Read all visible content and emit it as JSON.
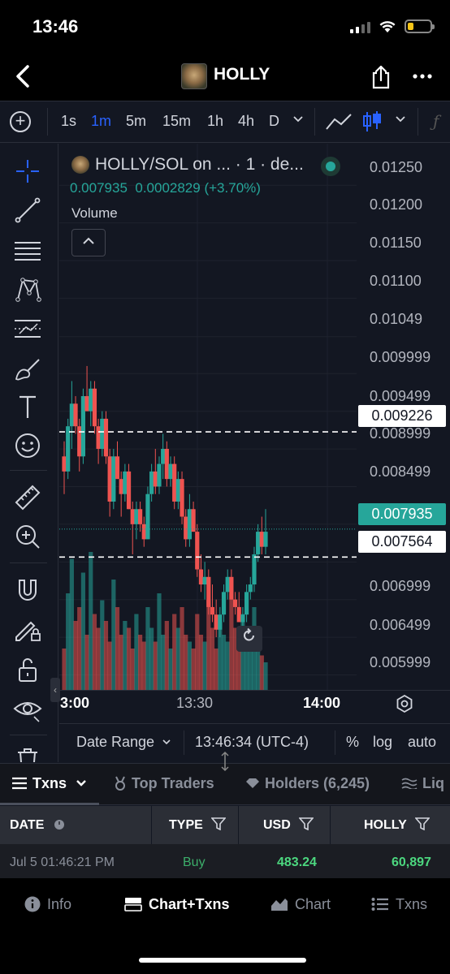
{
  "status_bar": {
    "time": "13:46"
  },
  "header": {
    "title": "HOLLY"
  },
  "toolbar": {
    "intervals": [
      "1s",
      "1m",
      "5m",
      "15m",
      "1h",
      "4h",
      "D"
    ],
    "active_interval": "1m"
  },
  "legend": {
    "symbol": "HOLLY/SOL on ... · 1 · de...",
    "last_price": "0.007935",
    "change": "0.0002829",
    "change_pct": "(+3.70%)",
    "volume_label": "Volume"
  },
  "chart_data": {
    "type": "candlestick",
    "price_axis_labels": [
      "0.01250",
      "0.01200",
      "0.01150",
      "0.01100",
      "0.01049",
      "0.009999",
      "0.009499",
      "0.008999",
      "0.008499",
      "0.006999",
      "0.006499",
      "0.005999"
    ],
    "ylim": [
      0.0058,
      0.01275
    ],
    "time_axis_labels": [
      "3:00",
      "13:30",
      "14:00"
    ],
    "horizontal_lines": [
      {
        "price": 0.009226,
        "label": "0.009226",
        "style": "dashed",
        "color": "#ffffff"
      },
      {
        "price": 0.007564,
        "label": "0.007564",
        "style": "dashed",
        "color": "#ffffff"
      }
    ],
    "current_price": {
      "price": 0.007935,
      "label": "0.007935",
      "color": "#26a69a"
    },
    "up_color": "#26a69a",
    "down_color": "#ef5350",
    "candles": [
      [
        0.0089,
        0.0091,
        0.0084,
        0.0087
      ],
      [
        0.0087,
        0.0094,
        0.0086,
        0.0093
      ],
      [
        0.0093,
        0.0099,
        0.009,
        0.0096
      ],
      [
        0.0096,
        0.0097,
        0.0092,
        0.0093
      ],
      [
        0.0093,
        0.0094,
        0.0087,
        0.0089
      ],
      [
        0.0089,
        0.0098,
        0.0088,
        0.0097
      ],
      [
        0.0097,
        0.0101,
        0.0095,
        0.0095
      ],
      [
        0.0095,
        0.0099,
        0.0093,
        0.0098
      ],
      [
        0.0098,
        0.0099,
        0.0092,
        0.0093
      ],
      [
        0.0093,
        0.0094,
        0.0088,
        0.009
      ],
      [
        0.009,
        0.0095,
        0.0089,
        0.0094
      ],
      [
        0.0094,
        0.0095,
        0.0088,
        0.0089
      ],
      [
        0.0089,
        0.009,
        0.0081,
        0.0083
      ],
      [
        0.0083,
        0.009,
        0.0082,
        0.0089
      ],
      [
        0.0089,
        0.0091,
        0.0086,
        0.0086
      ],
      [
        0.0086,
        0.0087,
        0.0081,
        0.0084
      ],
      [
        0.0084,
        0.0088,
        0.0083,
        0.0087
      ],
      [
        0.0087,
        0.0088,
        0.0082,
        0.0082
      ],
      [
        0.0082,
        0.0083,
        0.0076,
        0.008
      ],
      [
        0.008,
        0.0083,
        0.0078,
        0.0082
      ],
      [
        0.0082,
        0.0083,
        0.0079,
        0.008
      ],
      [
        0.008,
        0.0081,
        0.0077,
        0.0078
      ],
      [
        0.0078,
        0.0085,
        0.0078,
        0.0084
      ],
      [
        0.0084,
        0.0088,
        0.0083,
        0.0087
      ],
      [
        0.0087,
        0.009,
        0.0084,
        0.0085
      ],
      [
        0.0085,
        0.0089,
        0.0084,
        0.0088
      ],
      [
        0.0088,
        0.0092,
        0.0086,
        0.009
      ],
      [
        0.009,
        0.0091,
        0.0085,
        0.0086
      ],
      [
        0.0086,
        0.0089,
        0.0085,
        0.0088
      ],
      [
        0.0088,
        0.0089,
        0.0082,
        0.0083
      ],
      [
        0.0083,
        0.0087,
        0.0082,
        0.0086
      ],
      [
        0.0086,
        0.0087,
        0.008,
        0.0081
      ],
      [
        0.0081,
        0.0082,
        0.0077,
        0.0078
      ],
      [
        0.0078,
        0.0084,
        0.0077,
        0.0082
      ],
      [
        0.0082,
        0.0083,
        0.0079,
        0.0079
      ],
      [
        0.0079,
        0.008,
        0.0073,
        0.0074
      ],
      [
        0.0074,
        0.0076,
        0.0071,
        0.0072
      ],
      [
        0.0072,
        0.0075,
        0.007,
        0.0073
      ],
      [
        0.0073,
        0.0074,
        0.0068,
        0.0069
      ],
      [
        0.0069,
        0.0072,
        0.0067,
        0.0068
      ],
      [
        0.0068,
        0.007,
        0.0065,
        0.0066
      ],
      [
        0.0066,
        0.0069,
        0.0065,
        0.0068
      ],
      [
        0.0068,
        0.0072,
        0.0067,
        0.0071
      ],
      [
        0.0071,
        0.0074,
        0.007,
        0.0073
      ],
      [
        0.0073,
        0.0074,
        0.007,
        0.007
      ],
      [
        0.007,
        0.0071,
        0.0068,
        0.0069
      ],
      [
        0.0069,
        0.0071,
        0.0067,
        0.0067
      ],
      [
        0.0067,
        0.0069,
        0.0066,
        0.0068
      ],
      [
        0.0068,
        0.0072,
        0.0067,
        0.0071
      ],
      [
        0.0071,
        0.0073,
        0.007,
        0.0072
      ],
      [
        0.0072,
        0.0077,
        0.0071,
        0.0076
      ],
      [
        0.0076,
        0.008,
        0.0075,
        0.0079
      ],
      [
        0.0079,
        0.0081,
        0.0076,
        0.0077
      ],
      [
        0.0077,
        0.0082,
        0.0076,
        0.0079
      ]
    ],
    "volumes": [
      30,
      70,
      95,
      50,
      60,
      85,
      40,
      100,
      55,
      45,
      65,
      50,
      35,
      80,
      60,
      40,
      50,
      45,
      30,
      55,
      40,
      35,
      60,
      45,
      35,
      70,
      40,
      50,
      30,
      55,
      45,
      60,
      40,
      35,
      30,
      55,
      40,
      35,
      65,
      45,
      30,
      50,
      40,
      35,
      70,
      45,
      40,
      55,
      35,
      30,
      60,
      45,
      25,
      20
    ],
    "volume_max": 100
  },
  "chart_footer": {
    "date_range": "Date Range",
    "clock": "13:46:34 (UTC-4)",
    "percent": "%",
    "log": "log",
    "auto": "auto"
  },
  "tabs": [
    {
      "label": "Txns",
      "active": true
    },
    {
      "label": "Top Traders",
      "active": false
    },
    {
      "label": "Holders (6,245)",
      "active": false
    },
    {
      "label": "Liq",
      "active": false
    }
  ],
  "table": {
    "columns": [
      "DATE",
      "TYPE",
      "USD",
      "HOLLY"
    ],
    "rows": [
      {
        "date": "Jul 5 01:46:21 PM",
        "type": "Buy",
        "usd": "483.24",
        "holly": "60,897"
      }
    ]
  },
  "bottom_nav": {
    "items": [
      {
        "label": "Info",
        "active": false
      },
      {
        "label": "Chart+Txns",
        "active": true
      },
      {
        "label": "Chart",
        "active": false
      },
      {
        "label": "Txns",
        "active": false
      }
    ]
  }
}
